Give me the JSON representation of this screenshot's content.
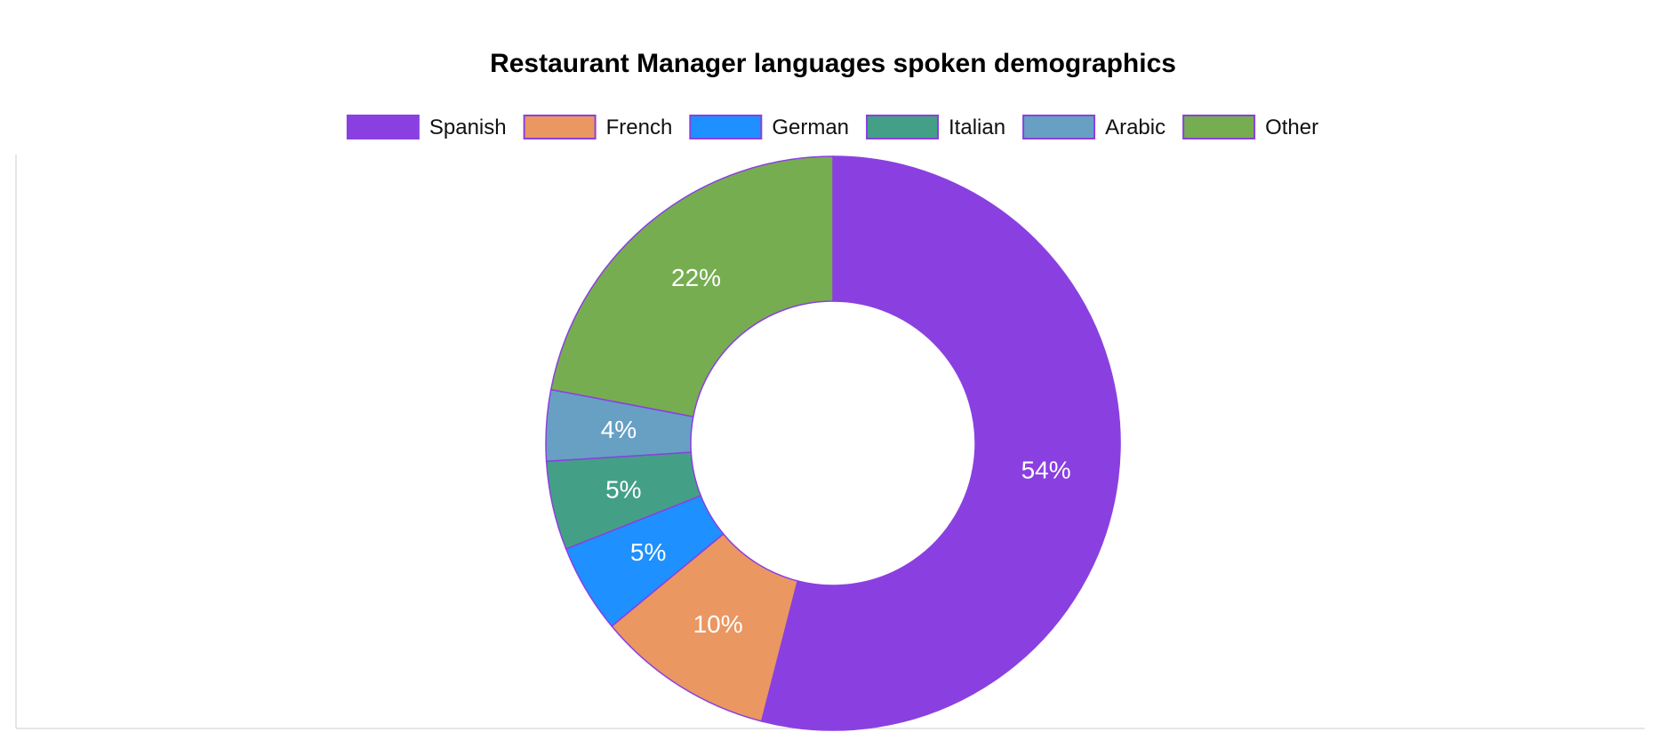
{
  "chart_data": {
    "type": "pie",
    "variant": "donut",
    "title": "Restaurant Manager languages spoken demographics",
    "legend_position": "top",
    "slice_border_color": "#8a40e0",
    "slices": [
      {
        "label": "Spanish",
        "value": 54,
        "display": "54%",
        "color": "#8a40e0"
      },
      {
        "label": "French",
        "value": 10,
        "display": "10%",
        "color": "#ea9762"
      },
      {
        "label": "German",
        "value": 5,
        "display": "5%",
        "color": "#1e90ff"
      },
      {
        "label": "Italian",
        "value": 5,
        "display": "5%",
        "color": "#43a087"
      },
      {
        "label": "Arabic",
        "value": 4,
        "display": "4%",
        "color": "#67a0c3"
      },
      {
        "label": "Other",
        "value": 22,
        "display": "22%",
        "color": "#77ad51"
      }
    ]
  }
}
